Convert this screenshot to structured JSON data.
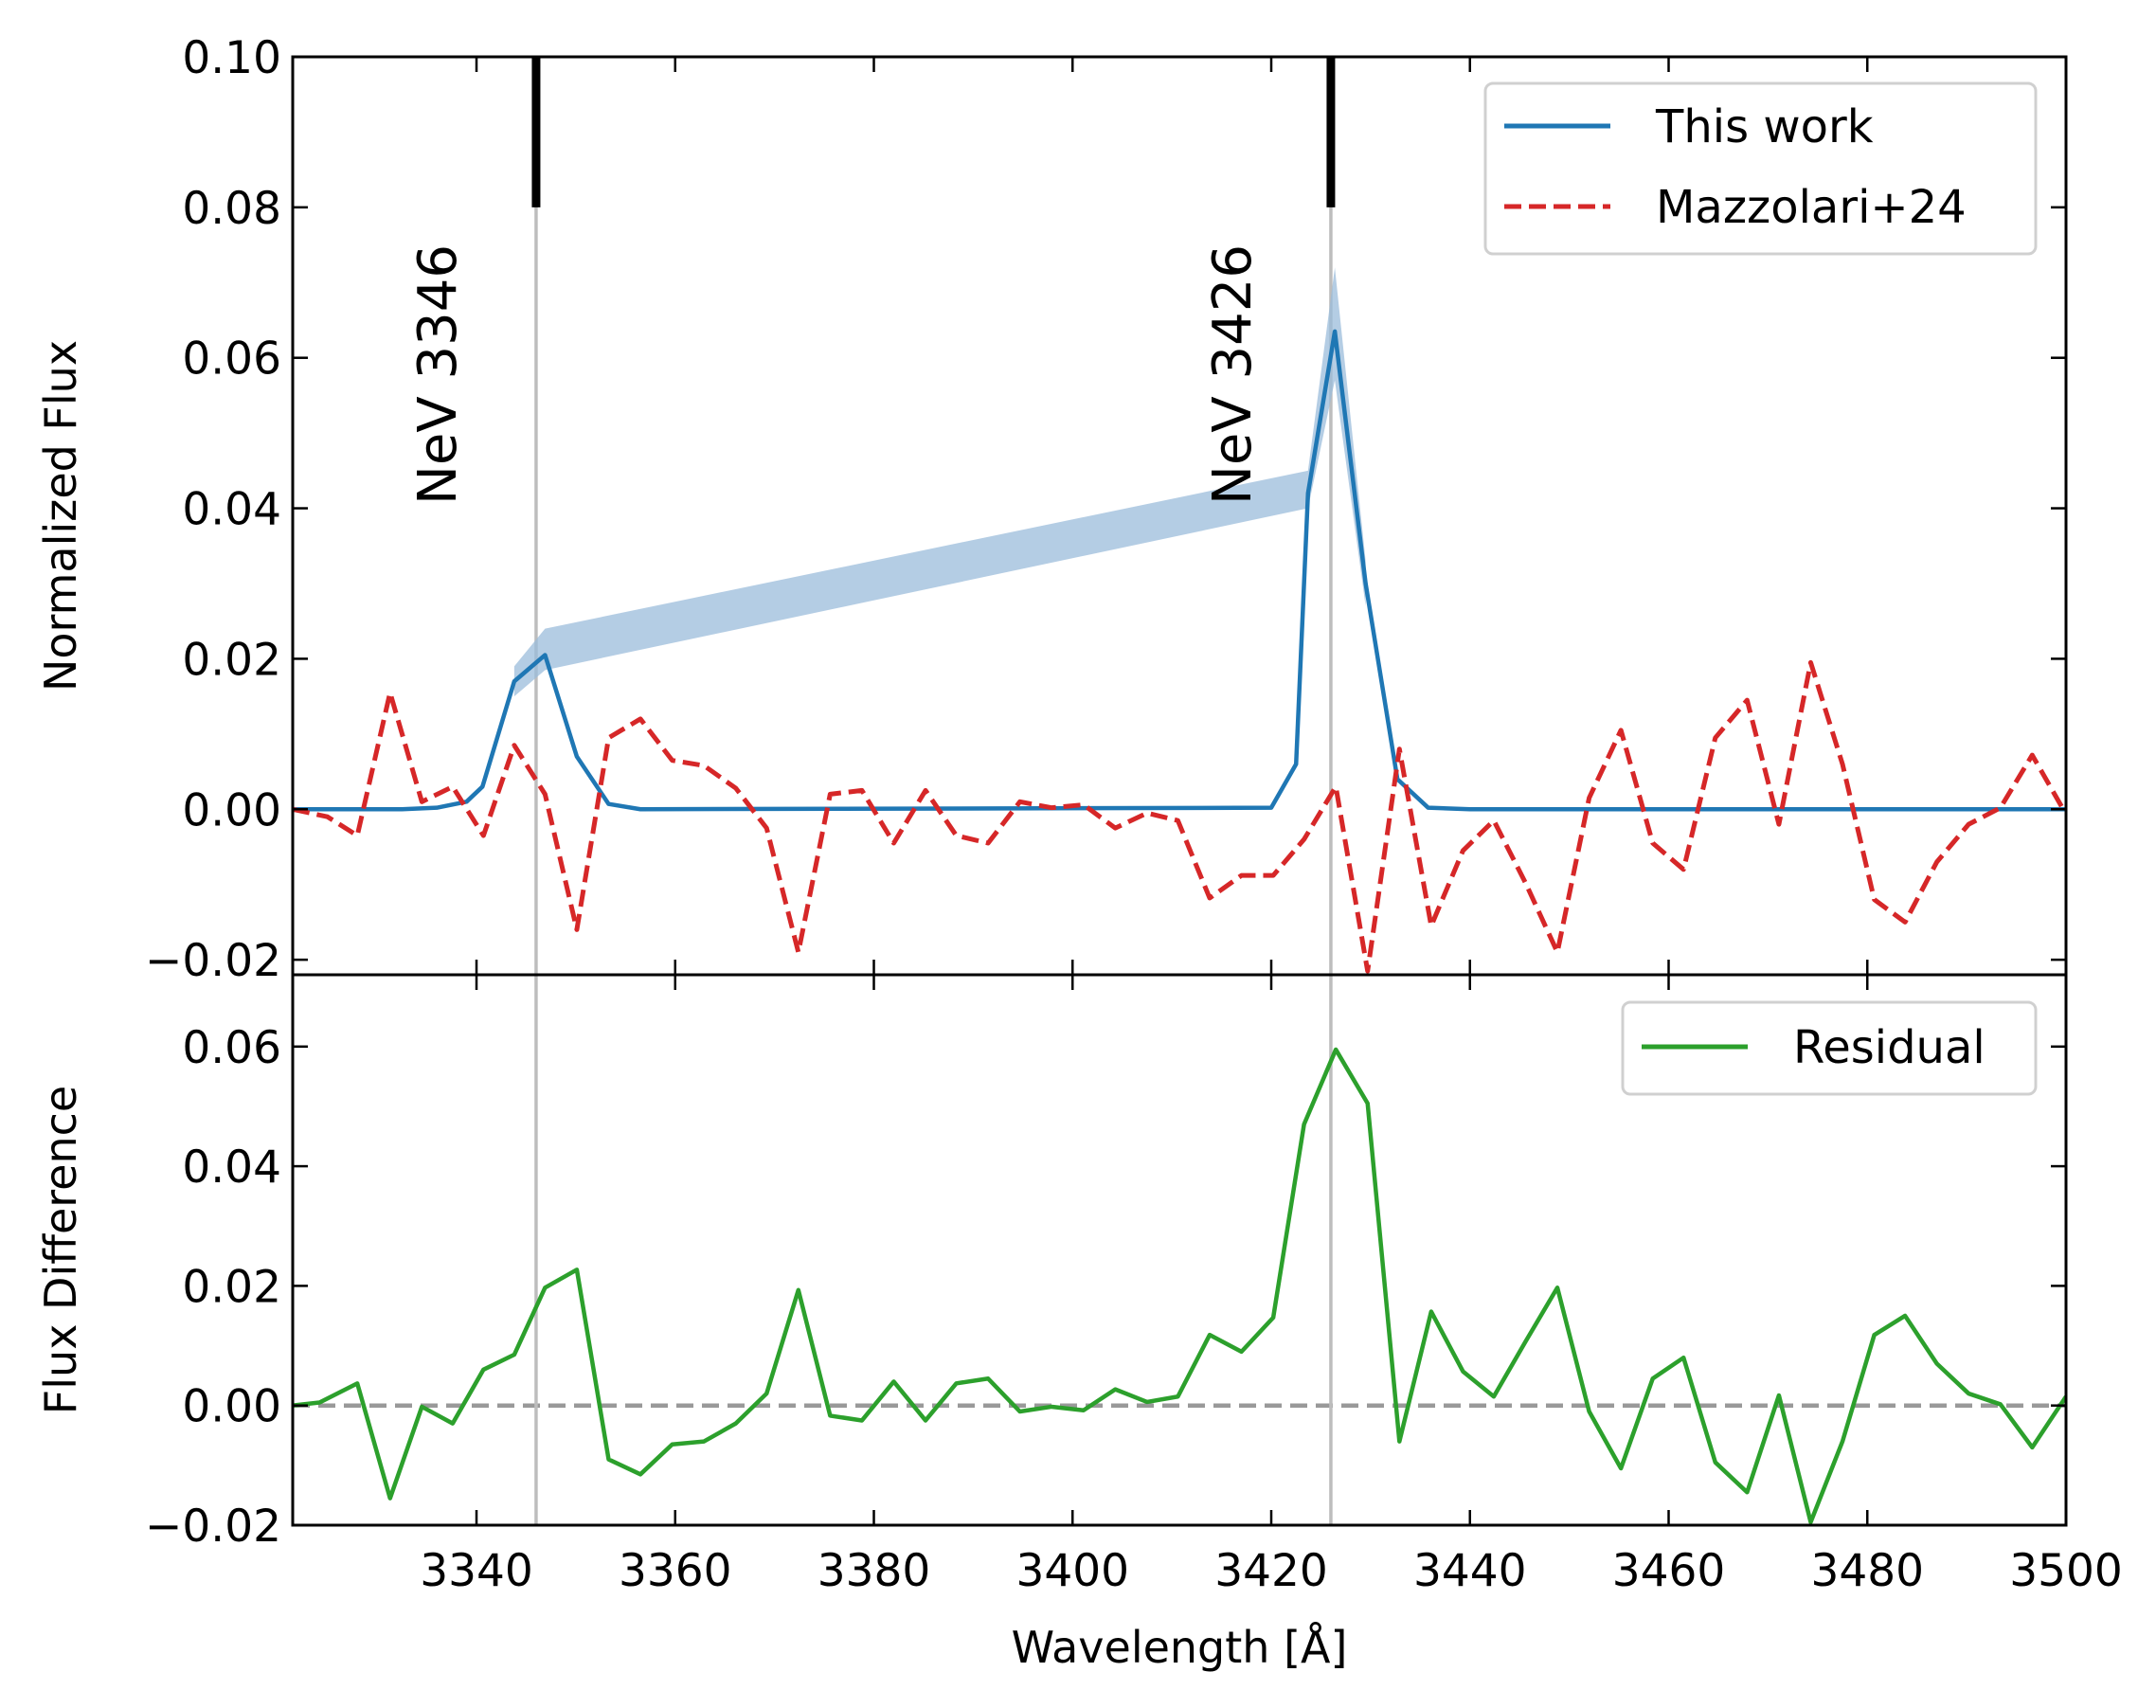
{
  "chart_data": [
    {
      "type": "line",
      "panel": "top",
      "xlabel": "",
      "ylabel": "Normalized Flux",
      "xlim": [
        3321.5,
        3500
      ],
      "ylim": [
        -0.022,
        0.1
      ],
      "x_ticks": [
        3340,
        3360,
        3380,
        3400,
        3420,
        3440,
        3460,
        3480,
        3500
      ],
      "y_ticks": [
        -0.02,
        0.0,
        0.02,
        0.04,
        0.06,
        0.08,
        0.1
      ],
      "y_tick_labels": [
        "−0.02",
        "0.00",
        "0.02",
        "0.04",
        "0.06",
        "0.08",
        "0.10"
      ],
      "grid": false,
      "legend_position": "top-right",
      "lines_marked": [
        {
          "x": 3346,
          "label": "NeV 3346"
        },
        {
          "x": 3426,
          "label": "NeV 3426"
        }
      ],
      "series": [
        {
          "name": "This work",
          "color": "#1f77b4",
          "style": "solid",
          "band_color": "#9bbcdb",
          "points": [
            [
              3321.5,
              0.0
            ],
            [
              3332.5,
              0.0
            ],
            [
              3336,
              0.0002
            ],
            [
              3339,
              0.001
            ],
            [
              3340.6,
              0.003
            ],
            [
              3343.8,
              0.017
            ],
            [
              3346.9,
              0.0205
            ],
            [
              3350.1,
              0.007
            ],
            [
              3353.3,
              0.0007
            ],
            [
              3356.5,
              0.0
            ],
            [
              3420,
              0.0002
            ],
            [
              3422.5,
              0.006
            ],
            [
              3423.7,
              0.042
            ],
            [
              3426.4,
              0.0635
            ],
            [
              3429.5,
              0.03
            ],
            [
              3432.7,
              0.004
            ],
            [
              3435.8,
              0.0002
            ],
            [
              3440,
              0.0
            ],
            [
              3500,
              0.0
            ]
          ],
          "band": [
            [
              3343.8,
              0.015,
              0.019
            ],
            [
              3346.9,
              0.0185,
              0.024
            ],
            [
              3423.7,
              0.04,
              0.045
            ],
            [
              3426.4,
              0.057,
              0.072
            ],
            [
              3429.5,
              0.027,
              0.033
            ]
          ]
        },
        {
          "name": "Mazzolari+24",
          "color": "#d62728",
          "style": "dashed",
          "points": [
            [
              3321.5,
              0.0
            ],
            [
              3325,
              -0.001
            ],
            [
              3328,
              -0.0035
            ],
            [
              3331.3,
              0.0155
            ],
            [
              3334.5,
              0.001
            ],
            [
              3337.6,
              0.003
            ],
            [
              3340.7,
              -0.0035
            ],
            [
              3343.8,
              0.0085
            ],
            [
              3346.9,
              0.002
            ],
            [
              3350.1,
              -0.016
            ],
            [
              3353.3,
              0.0095
            ],
            [
              3356.5,
              0.012
            ],
            [
              3359.7,
              0.0065
            ],
            [
              3362.9,
              0.0058
            ],
            [
              3366.1,
              0.0028
            ],
            [
              3369.2,
              -0.0025
            ],
            [
              3372.4,
              -0.019
            ],
            [
              3375.6,
              0.002
            ],
            [
              3378.8,
              0.0025
            ],
            [
              3382,
              -0.0045
            ],
            [
              3385.2,
              0.0025
            ],
            [
              3388.3,
              -0.0035
            ],
            [
              3391.5,
              -0.0045
            ],
            [
              3394.7,
              0.001
            ],
            [
              3397.9,
              0.0002
            ],
            [
              3401.1,
              0.0006
            ],
            [
              3404.3,
              -0.0025
            ],
            [
              3407.5,
              -0.0005
            ],
            [
              3410.6,
              -0.0015
            ],
            [
              3413.8,
              -0.0118
            ],
            [
              3417,
              -0.0088
            ],
            [
              3420.2,
              -0.0088
            ],
            [
              3423.3,
              -0.004
            ],
            [
              3426.5,
              0.003
            ],
            [
              3429.7,
              -0.0215
            ],
            [
              3432.9,
              0.008
            ],
            [
              3436.1,
              -0.0155
            ],
            [
              3439.3,
              -0.0055
            ],
            [
              3442.4,
              -0.0015
            ],
            [
              3445.6,
              -0.0098
            ],
            [
              3448.8,
              -0.019
            ],
            [
              3452,
              0.0015
            ],
            [
              3455.2,
              0.0105
            ],
            [
              3458.4,
              -0.0045
            ],
            [
              3461.5,
              -0.008
            ],
            [
              3464.7,
              0.0095
            ],
            [
              3467.9,
              0.0145
            ],
            [
              3471.1,
              -0.002
            ],
            [
              3474.3,
              0.0195
            ],
            [
              3477.5,
              0.006
            ],
            [
              3480.7,
              -0.012
            ],
            [
              3483.8,
              -0.015
            ],
            [
              3487,
              -0.007
            ],
            [
              3490.2,
              -0.002
            ],
            [
              3493.4,
              0.0002
            ],
            [
              3496.6,
              0.0072
            ],
            [
              3499.8,
              -0.0002
            ]
          ]
        }
      ]
    },
    {
      "type": "line",
      "panel": "bottom",
      "xlabel": "Wavelength [Å]",
      "ylabel": "Flux Difference",
      "xlim": [
        3321.5,
        3500
      ],
      "ylim": [
        -0.02,
        0.072
      ],
      "x_ticks": [
        3340,
        3360,
        3380,
        3400,
        3420,
        3440,
        3460,
        3480,
        3500
      ],
      "y_ticks": [
        -0.02,
        0.0,
        0.02,
        0.04,
        0.06
      ],
      "y_tick_labels": [
        "−0.02",
        "0.00",
        "0.02",
        "0.04",
        "0.06"
      ],
      "grid": false,
      "legend_position": "top-right",
      "reference_line": {
        "y": 0,
        "color": "#999999",
        "style": "dashed"
      },
      "series": [
        {
          "name": "Residual",
          "color": "#2ca02c",
          "style": "solid",
          "points": [
            [
              3321.5,
              0.0
            ],
            [
              3324.2,
              0.0005
            ],
            [
              3328,
              0.0037
            ],
            [
              3331.3,
              -0.0155
            ],
            [
              3334.5,
              -0.0002
            ],
            [
              3337.6,
              -0.003
            ],
            [
              3340.7,
              0.006
            ],
            [
              3343.8,
              0.0085
            ],
            [
              3346.9,
              0.0197
            ],
            [
              3350.1,
              0.0227
            ],
            [
              3353.3,
              -0.009
            ],
            [
              3356.5,
              -0.0115
            ],
            [
              3359.7,
              -0.0065
            ],
            [
              3362.9,
              -0.006
            ],
            [
              3366.1,
              -0.003
            ],
            [
              3369.2,
              0.002
            ],
            [
              3372.4,
              0.0193
            ],
            [
              3375.6,
              -0.0017
            ],
            [
              3378.8,
              -0.0025
            ],
            [
              3382,
              0.004
            ],
            [
              3385.2,
              -0.0025
            ],
            [
              3388.3,
              0.0037
            ],
            [
              3391.5,
              0.0045
            ],
            [
              3394.7,
              -0.001
            ],
            [
              3397.9,
              -0.0002
            ],
            [
              3401.1,
              -0.0008
            ],
            [
              3404.3,
              0.0027
            ],
            [
              3407.5,
              0.0006
            ],
            [
              3410.6,
              0.0015
            ],
            [
              3413.8,
              0.0118
            ],
            [
              3417,
              0.009
            ],
            [
              3420.2,
              0.0147
            ],
            [
              3423.3,
              0.047
            ],
            [
              3426.5,
              0.0595
            ],
            [
              3429.7,
              0.0505
            ],
            [
              3432.9,
              -0.006
            ],
            [
              3436.1,
              0.0157
            ],
            [
              3439.3,
              0.0057
            ],
            [
              3442.4,
              0.0015
            ],
            [
              3445.6,
              0.0107
            ],
            [
              3448.8,
              0.0197
            ],
            [
              3452,
              -0.001
            ],
            [
              3455.2,
              -0.0105
            ],
            [
              3458.4,
              0.0045
            ],
            [
              3461.5,
              0.008
            ],
            [
              3464.7,
              -0.0095
            ],
            [
              3467.9,
              -0.0145
            ],
            [
              3471.1,
              0.0017
            ],
            [
              3474.3,
              -0.0195
            ],
            [
              3477.5,
              -0.006
            ],
            [
              3480.7,
              0.0118
            ],
            [
              3483.8,
              0.015
            ],
            [
              3487,
              0.007
            ],
            [
              3490.2,
              0.002
            ],
            [
              3493.4,
              0.0002
            ],
            [
              3496.6,
              -0.007
            ],
            [
              3500,
              0.0015
            ]
          ]
        }
      ]
    }
  ]
}
